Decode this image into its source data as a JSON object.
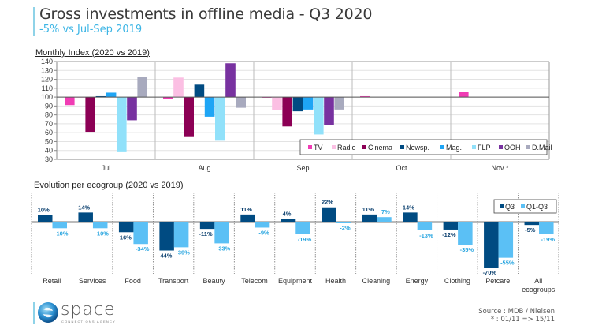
{
  "header": {
    "title": "Gross investments in offline media  -  Q3 2020",
    "subtitle": "-5% vs Jul-Sep 2019"
  },
  "chart_data": [
    {
      "type": "bar",
      "title": "Monthly Index (2020 vs 2019)",
      "xlabel": "",
      "ylabel": "",
      "categories": [
        "Jul",
        "Aug",
        "Sep",
        "Oct",
        "Nov *"
      ],
      "ylim": [
        30,
        140
      ],
      "yticks": [
        30,
        40,
        50,
        60,
        70,
        80,
        90,
        100,
        110,
        120,
        130,
        140
      ],
      "baseline": 100,
      "grid": true,
      "legend_position": "bottom-right",
      "series": [
        {
          "name": "TV",
          "color": "#f03cb4",
          "values": [
            91,
            98,
            99.5,
            101,
            106
          ]
        },
        {
          "name": "Radio",
          "color": "#fbbfe3",
          "values": [
            100,
            122,
            85,
            null,
            null
          ]
        },
        {
          "name": "Cinema",
          "color": "#8c0055",
          "values": [
            61,
            56,
            67,
            null,
            null
          ]
        },
        {
          "name": "Newsp.",
          "color": "#004b82",
          "values": [
            101,
            114,
            84,
            null,
            null
          ]
        },
        {
          "name": "Mag.",
          "color": "#1ea5f5",
          "values": [
            105,
            78,
            86,
            null,
            null
          ]
        },
        {
          "name": "FLP",
          "color": "#91e1fa",
          "values": [
            39,
            51,
            58,
            null,
            null
          ]
        },
        {
          "name": "OOH",
          "color": "#7832a0",
          "values": [
            74,
            138,
            69,
            null,
            null
          ]
        },
        {
          "name": "D.Mail",
          "color": "#a8aabe",
          "values": [
            123,
            88,
            86,
            null,
            null
          ]
        }
      ]
    },
    {
      "type": "bar",
      "title": "Evolution per ecogroup (2020 vs 2019)",
      "xlabel": "",
      "ylabel": "",
      "categories": [
        "Retail",
        "Services",
        "Food",
        "Transport",
        "Beauty",
        "Telecom",
        "Equipment",
        "Health",
        "Cleaning",
        "Energy",
        "Clothing",
        "Petcare",
        "All ecogroups"
      ],
      "ylim": [
        -75,
        30
      ],
      "grid": false,
      "legend_position": "top-right",
      "series": [
        {
          "name": "Q3",
          "color": "#004b82",
          "label_color": "#0a3f6e",
          "values": [
            10,
            14,
            -16,
            -44,
            -11,
            11,
            4,
            22,
            11,
            14,
            -12,
            -70,
            -5
          ]
        },
        {
          "name": "Q1-Q3",
          "color": "#5bc0f5",
          "label_color": "#2aa6e0",
          "values": [
            -10,
            -10,
            -34,
            -39,
            -33,
            -9,
            -19,
            -2,
            7,
            -13,
            -35,
            -55,
            -19
          ]
        }
      ]
    }
  ],
  "footer": {
    "logo_name": "space",
    "logo_tagline": "CONNECTIONS AGENCY",
    "source_line1": "Source : MDB / Nielsen",
    "source_line2": "* : 01/11 => 15/11"
  }
}
